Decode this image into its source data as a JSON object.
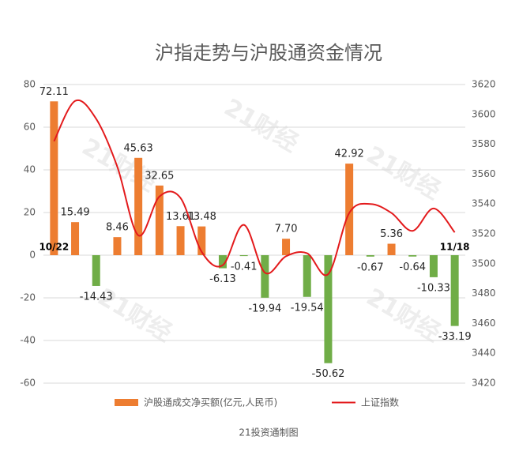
{
  "chart_data": {
    "type": "bar-line",
    "title": "沪指走势与沪股通资金情况",
    "source": "21投资通制图",
    "watermark": "21财经",
    "categories": [
      "10/22",
      null,
      null,
      null,
      null,
      null,
      null,
      null,
      null,
      null,
      null,
      null,
      null,
      null,
      null,
      null,
      null,
      null,
      null,
      "11/18"
    ],
    "series": [
      {
        "name": "沪股通成交净买额(亿元,人民币)",
        "color": "#ed7d31",
        "type": "bar",
        "values": [
          72.11,
          15.49,
          -14.43,
          8.46,
          45.63,
          32.65,
          13.61,
          13.48,
          -6.13,
          -0.41,
          -19.94,
          7.7,
          -19.54,
          -50.62,
          42.92,
          -0.67,
          5.36,
          -0.64,
          -10.33,
          -33.19
        ],
        "value_labels": [
          "72.11",
          "15.49",
          "-14.43",
          "8.46",
          "45.63",
          "32.65",
          "13.61",
          "13.48",
          "-6.13",
          "-0.41",
          "-19.94",
          "7.70",
          "-19.54",
          "-50.62",
          "42.92",
          "-0.67",
          "5.36",
          "-0.64",
          "-10.33",
          "-33.19"
        ],
        "positive_color": "#ed7d31",
        "negative_color": "#70ad47"
      },
      {
        "name": "上证指数",
        "color": "#e31a1c",
        "type": "line",
        "axis": "y2",
        "values": [
          3582,
          3609,
          3597,
          3565,
          3519,
          3545,
          3544,
          3508,
          3499,
          3526,
          3494,
          3505,
          3507,
          3493,
          3534,
          3540,
          3534,
          3522,
          3537,
          3521
        ]
      }
    ],
    "ylim": [
      -60,
      80
    ],
    "yticks": [
      -60,
      -40,
      -20,
      0,
      20,
      40,
      60,
      80
    ],
    "y2lim": [
      3420,
      3620
    ],
    "y2ticks": [
      3420,
      3440,
      3460,
      3480,
      3500,
      3520,
      3540,
      3560,
      3580,
      3600,
      3620
    ],
    "grid": true,
    "legend": "bottom"
  }
}
